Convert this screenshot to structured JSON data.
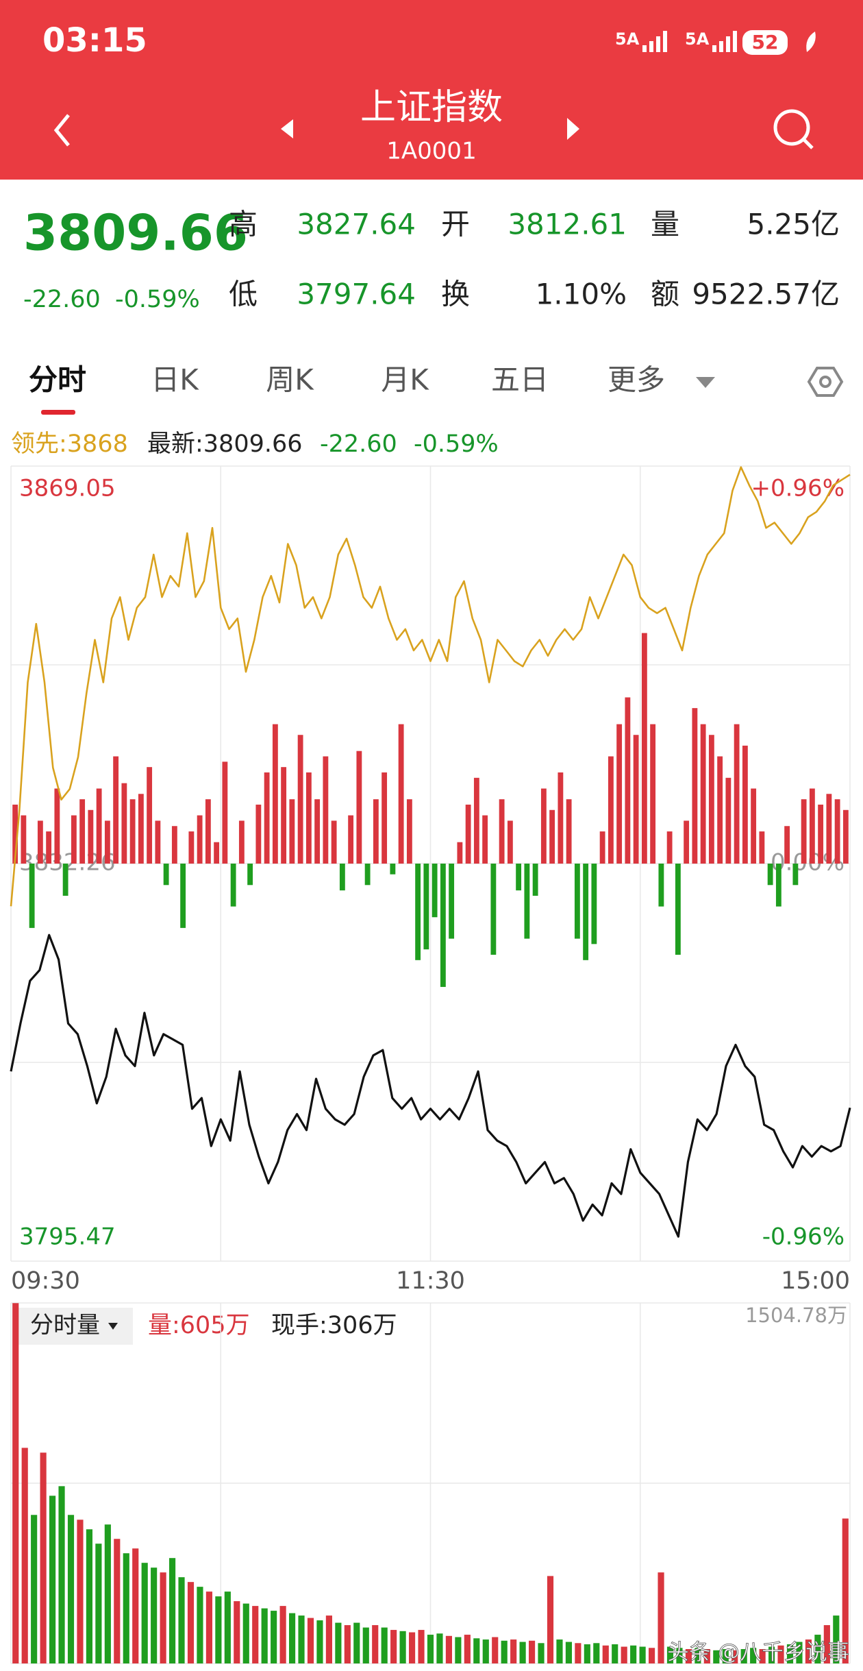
{
  "status_bar": {
    "time": "03:15",
    "signal_labels": [
      "5A",
      "5A"
    ],
    "battery": "52"
  },
  "header": {
    "title": "上证指数",
    "code": "1A0001"
  },
  "quote": {
    "price": "3809.66",
    "change": "-22.60",
    "change_pct": "-0.59%",
    "fields": [
      {
        "label": "高",
        "value": "3827.64"
      },
      {
        "label": "开",
        "value": "3812.61"
      },
      {
        "label": "量",
        "value": "5.25亿"
      },
      {
        "label": "低",
        "value": "3797.64"
      },
      {
        "label": "换",
        "value": "1.10%"
      },
      {
        "label": "额",
        "value": "9522.57亿"
      }
    ]
  },
  "tabs": [
    "分时",
    "日K",
    "周K",
    "月K",
    "五日",
    "更多"
  ],
  "chart_data": [
    {
      "type": "line",
      "legend": {
        "leading": "领先:3868",
        "latest": "最新:3809.66",
        "change": "-22.60",
        "change_pct": "-0.59%"
      },
      "ylim": [
        3795.47,
        3869.05
      ],
      "yticks": [
        3869.05,
        3832.26,
        3795.47
      ],
      "y2lim": [
        -0.96,
        0.96
      ],
      "y2ticks": [
        {
          "value": 0.96,
          "label": "+0.96%"
        },
        {
          "value": 0,
          "label": "0.00%"
        },
        {
          "value": -0.96,
          "label": "-0.96%"
        }
      ],
      "x_labels": [
        "09:30",
        "11:30",
        "15:00"
      ],
      "grid": true,
      "series": [
        {
          "color": "#111111",
          "values": [
            3813.03,
            3817.47,
            3821.41,
            3822.4,
            3825.65,
            3823.38,
            3817.47,
            3816.48,
            3813.52,
            3810.07,
            3812.53,
            3816.97,
            3814.51,
            3813.52,
            3818.45,
            3814.51,
            3816.48,
            3815.99,
            3815.49,
            3809.57,
            3810.56,
            3806.12,
            3808.59,
            3806.62,
            3813.03,
            3808.09,
            3805.14,
            3802.67,
            3804.64,
            3807.6,
            3809.08,
            3807.6,
            3812.34,
            3809.57,
            3808.59,
            3808.09,
            3809.08,
            3812.53,
            3814.51,
            3815.0,
            3810.56,
            3809.57,
            3810.56,
            3808.59,
            3809.57,
            3808.59,
            3809.57,
            3808.59,
            3810.56,
            3813.03,
            3807.6,
            3806.62,
            3806.12,
            3804.64,
            3802.67,
            3803.66,
            3804.64,
            3802.67,
            3803.16,
            3801.68,
            3799.22,
            3800.7,
            3799.71,
            3802.67,
            3801.68,
            3805.83,
            3803.66,
            3802.67,
            3801.68,
            3799.71,
            3797.74,
            3804.64,
            3808.59,
            3807.6,
            3809.08,
            3813.52,
            3815.49,
            3813.52,
            3812.53,
            3808.09,
            3807.6,
            3805.63,
            3804.15,
            3806.12,
            3805.14,
            3806.12,
            3805.63,
            3806.12,
            3809.66
          ]
        },
        {
          "color": "#d9a21e",
          "values": [
            3828.31,
            3837.19,
            3849.03,
            3854.45,
            3849.03,
            3841.14,
            3838.18,
            3839.16,
            3842.12,
            3848.04,
            3852.97,
            3849.03,
            3854.95,
            3856.92,
            3852.97,
            3855.93,
            3856.92,
            3860.86,
            3856.92,
            3858.89,
            3857.9,
            3862.84,
            3856.92,
            3858.4,
            3863.33,
            3855.93,
            3853.96,
            3854.95,
            3850.01,
            3852.97,
            3856.92,
            3858.89,
            3856.42,
            3861.85,
            3859.88,
            3855.93,
            3856.92,
            3854.95,
            3856.92,
            3860.86,
            3862.34,
            3859.88,
            3856.92,
            3855.93,
            3857.9,
            3854.95,
            3852.97,
            3853.96,
            3851.99,
            3852.97,
            3851.0,
            3852.97,
            3851.0,
            3856.92,
            3858.4,
            3854.95,
            3852.97,
            3849.03,
            3852.97,
            3851.99,
            3851.0,
            3850.51,
            3851.99,
            3852.97,
            3851.49,
            3852.97,
            3853.96,
            3852.97,
            3853.96,
            3856.92,
            3854.95,
            3856.92,
            3858.89,
            3860.86,
            3859.88,
            3856.92,
            3855.93,
            3855.44,
            3855.93,
            3853.96,
            3851.99,
            3855.93,
            3858.89,
            3860.86,
            3861.85,
            3862.84,
            3866.78,
            3868.95,
            3867.27,
            3865.8,
            3863.33,
            3863.82,
            3862.84,
            3861.85,
            3862.84,
            3864.32,
            3864.81,
            3865.8,
            3867.27,
            3867.77,
            3868.26
          ]
        }
      ],
      "bars": {
        "up_color": "#d9363e",
        "down_color": "#1f9e1f",
        "values": [
          55,
          45,
          -60,
          40,
          30,
          70,
          -30,
          45,
          60,
          50,
          70,
          40,
          100,
          75,
          60,
          65,
          90,
          40,
          -20,
          35,
          -60,
          30,
          45,
          60,
          20,
          95,
          -40,
          40,
          -20,
          55,
          85,
          130,
          90,
          60,
          120,
          85,
          60,
          100,
          40,
          -25,
          45,
          105,
          -20,
          60,
          85,
          -10,
          130,
          60,
          -90,
          -80,
          -50,
          -115,
          -70,
          20,
          55,
          80,
          45,
          -85,
          60,
          40,
          -25,
          -70,
          -30,
          70,
          50,
          85,
          60,
          -70,
          -90,
          -75,
          30,
          100,
          130,
          155,
          120,
          215,
          130,
          -40,
          30,
          -85,
          40,
          145,
          130,
          120,
          100,
          80,
          130,
          110,
          70,
          30,
          -20,
          -40,
          35,
          -20,
          60,
          70,
          55,
          65,
          60,
          50
        ]
      }
    },
    {
      "type": "bar",
      "selector": "分时量",
      "volume_label": "量:605万",
      "hand_label": "现手:306万",
      "ylim": [
        0,
        1504.78
      ],
      "yticks": [
        {
          "value": 1504.78,
          "label": "1504.78万"
        }
      ],
      "palette": [
        "#d9363e",
        "#1f9e1f"
      ],
      "values": [
        1504,
        900,
        620,
        880,
        700,
        740,
        620,
        600,
        560,
        500,
        580,
        520,
        460,
        480,
        420,
        400,
        380,
        440,
        360,
        340,
        320,
        300,
        280,
        300,
        260,
        250,
        240,
        230,
        220,
        240,
        210,
        200,
        190,
        180,
        200,
        170,
        160,
        170,
        150,
        160,
        150,
        140,
        135,
        130,
        140,
        120,
        125,
        115,
        110,
        120,
        105,
        100,
        110,
        95,
        100,
        90,
        95,
        85,
        365,
        100,
        90,
        85,
        80,
        85,
        75,
        80,
        70,
        75,
        70,
        65,
        380,
        70,
        65,
        60,
        65,
        60,
        55,
        60,
        55,
        60,
        65,
        60,
        70,
        75,
        80,
        90,
        100,
        120,
        160,
        200,
        605
      ],
      "color_index": [
        0,
        0,
        1,
        0,
        1,
        1,
        1,
        0,
        1,
        1,
        1,
        0,
        1,
        0,
        1,
        1,
        0,
        1,
        1,
        0,
        1,
        0,
        1,
        1,
        0,
        1,
        0,
        1,
        1,
        0,
        1,
        1,
        0,
        1,
        0,
        1,
        0,
        1,
        1,
        0,
        1,
        0,
        1,
        0,
        0,
        1,
        1,
        0,
        1,
        0,
        1,
        1,
        0,
        1,
        0,
        1,
        0,
        1,
        0,
        1,
        1,
        0,
        1,
        1,
        0,
        1,
        0,
        1,
        1,
        0,
        0,
        1,
        1,
        0,
        1,
        0,
        1,
        1,
        0,
        1,
        1,
        0,
        1,
        0,
        1,
        1,
        0,
        1,
        0,
        1,
        0
      ]
    }
  ],
  "watermark": "头条 @八千乡说事"
}
